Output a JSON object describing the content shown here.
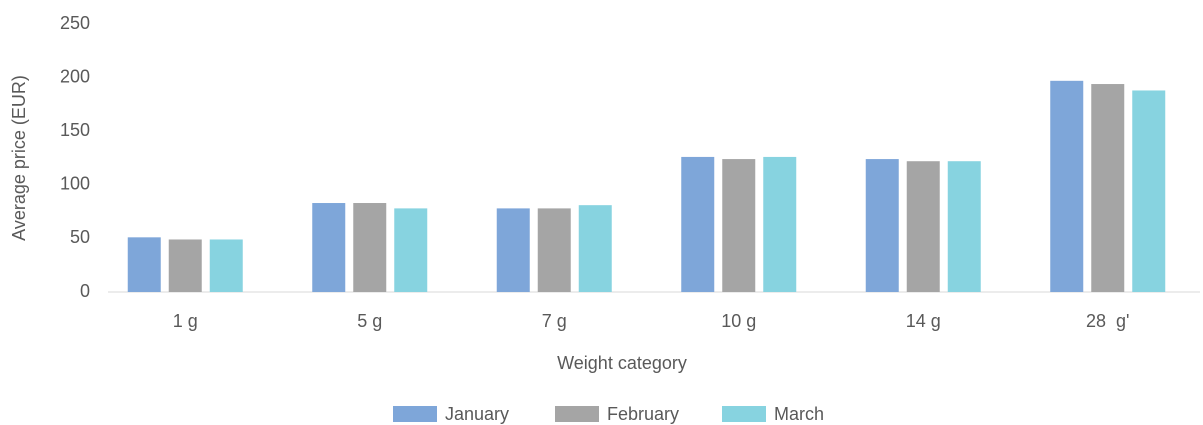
{
  "chart_data": {
    "type": "bar",
    "x_label": "Weight category",
    "y_label": "Average price (EUR)",
    "categories": [
      "1 g",
      "5 g",
      "7 g",
      "10 g",
      "14 g",
      "28  g'"
    ],
    "series": [
      {
        "name": "January",
        "color": "#7ea6d9",
        "values": [
          51,
          83,
          78,
          126,
          124,
          197
        ]
      },
      {
        "name": "February",
        "color": "#a5a5a5",
        "values": [
          49,
          83,
          78,
          124,
          122,
          194
        ]
      },
      {
        "name": "March",
        "color": "#87d3e0",
        "values": [
          49,
          78,
          81,
          126,
          122,
          188
        ]
      }
    ],
    "ylim": [
      0,
      250
    ],
    "yticks": [
      0,
      50,
      100,
      150,
      200,
      250
    ],
    "grid": false,
    "legend": "bottom"
  }
}
